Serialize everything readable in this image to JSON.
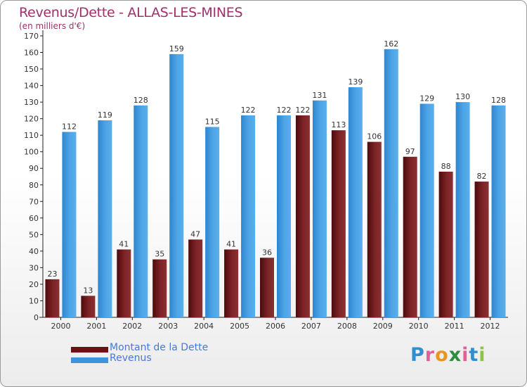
{
  "title": "Revenus/Dette - ALLAS-LES-MINES",
  "subtitle": "(en milliers d'€)",
  "colors": {
    "debt": "#7a1f22",
    "revenue": "#4a9fe0",
    "title": "#a0306a",
    "legend_text": "#4a78d8"
  },
  "legend": {
    "items": [
      {
        "label": "Montant de la Dette",
        "color": "#6e0f12"
      },
      {
        "label": "Revenus",
        "color": "#3d94dc"
      }
    ]
  },
  "logo": {
    "letters": [
      "P",
      "r",
      "o",
      "x",
      "i",
      "t",
      "i"
    ],
    "colors": [
      "#2f8fd0",
      "#e35f9a",
      "#e89522",
      "#2e8c3a",
      "#e35f9a",
      "#2f8fd0",
      "#8cc63f"
    ]
  },
  "chart_data": {
    "type": "bar",
    "categories": [
      "2000",
      "2001",
      "2002",
      "2003",
      "2004",
      "2005",
      "2006",
      "2007",
      "2008",
      "2009",
      "2010",
      "2011",
      "2012"
    ],
    "series": [
      {
        "name": "Montant de la Dette",
        "values": [
          23,
          13,
          41,
          35,
          47,
          41,
          36,
          122,
          113,
          106,
          97,
          88,
          82
        ]
      },
      {
        "name": "Revenus",
        "values": [
          112,
          119,
          128,
          159,
          115,
          122,
          122,
          131,
          139,
          162,
          129,
          130,
          128
        ]
      }
    ],
    "ylim": [
      0,
      170
    ],
    "yticks": [
      0,
      10,
      20,
      30,
      40,
      50,
      60,
      70,
      80,
      90,
      100,
      110,
      120,
      130,
      140,
      150,
      160,
      170
    ],
    "grid": false,
    "legend_position": "bottom-left"
  }
}
